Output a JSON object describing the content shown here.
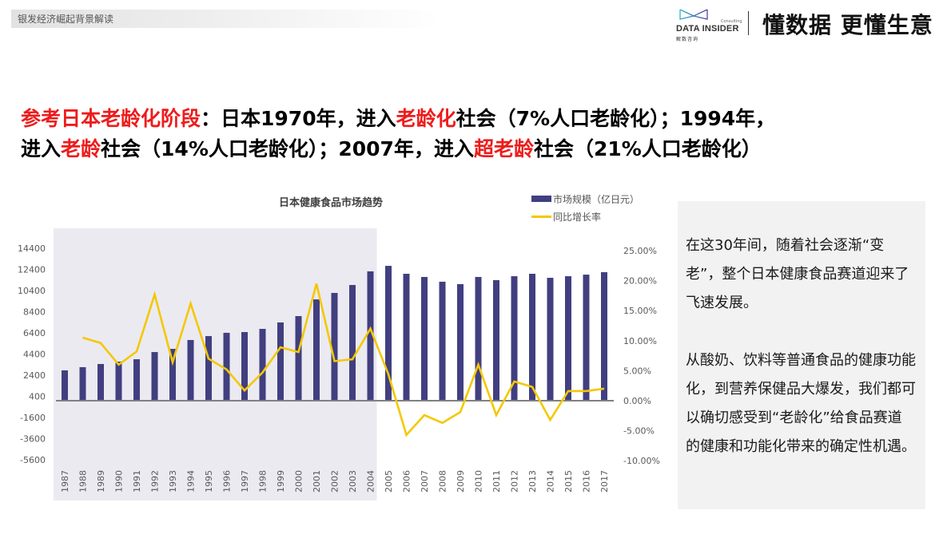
{
  "header": {
    "section_title": "银发经济崛起背景解读",
    "brand": {
      "consulting": "Consulting",
      "name": "DATA INSIDER",
      "name_cn": "解数咨询",
      "slogan": "懂数据 更懂生意"
    }
  },
  "headline": {
    "line1": [
      {
        "text": "参考日本老龄化阶段",
        "red": true
      },
      {
        "text": "：日本1970年，进入",
        "red": false
      },
      {
        "text": "老龄化",
        "red": true
      },
      {
        "text": "社会（7%人口老龄化）；1994年，",
        "red": false
      }
    ],
    "line2": [
      {
        "text": "进入",
        "red": false
      },
      {
        "text": "老龄",
        "red": true
      },
      {
        "text": "社会（14%人口老龄化）；2007年，进入",
        "red": false
      },
      {
        "text": "超老龄",
        "red": true
      },
      {
        "text": "社会（21%人口老龄化）",
        "red": false
      }
    ]
  },
  "side_panel": {
    "paragraph1": "在这30年间，随着社会逐渐“变老”，整个日本健康食品赛道迎来了飞速发展。",
    "paragraph2": "从酸奶、饮料等普通食品的健康功能化，到营养保健品大爆发，我们都可以确切感受到“老龄化”给食品赛道的健康和功能化带来的确定性机遇。"
  },
  "colors": {
    "bar": "#413f80",
    "line": "#f4c800",
    "shade": "#ebeaf1",
    "red_accent": "#ee1c1c",
    "panel_bg": "#f2f2f2"
  },
  "chart_data": {
    "type": "bar",
    "title": "日本健康食品市场趋势",
    "xlabel": "",
    "ylabel": "市场规模（亿日元）",
    "y2label": "同比增长率",
    "legend": [
      "市场规模（亿日元）",
      "同比增长率"
    ],
    "legend_position": "top-right",
    "grid": false,
    "shaded_range": [
      "1987",
      "2004"
    ],
    "ylim": [
      -5600,
      14400
    ],
    "yticks": [
      14400,
      12400,
      10400,
      8400,
      6400,
      4400,
      2400,
      400,
      -1600,
      -3600,
      -5600
    ],
    "y2lim": [
      -0.1,
      0.25
    ],
    "y2ticks": [
      "25.00%",
      "20.00%",
      "15.00%",
      "10.00%",
      "5.00%",
      "0.00%",
      "-5.00%",
      "-10.00%"
    ],
    "categories": [
      "1987",
      "1988",
      "1989",
      "1990",
      "1991",
      "1992",
      "1993",
      "1994",
      "1995",
      "1996",
      "1997",
      "1998",
      "1999",
      "2000",
      "2001",
      "2002",
      "2003",
      "2004",
      "2005",
      "2006",
      "2007",
      "2008",
      "2009",
      "2010",
      "2011",
      "2012",
      "2013",
      "2014",
      "2015",
      "2016",
      "2017"
    ],
    "series": [
      {
        "name": "市场规模（亿日元）",
        "type": "bar",
        "axis": "left",
        "values": [
          2870,
          3170,
          3470,
          3700,
          3920,
          4600,
          4900,
          5740,
          6110,
          6420,
          6490,
          6790,
          7400,
          8000,
          9580,
          10190,
          10940,
          12230,
          12750,
          12000,
          11700,
          11250,
          11020,
          11700,
          11400,
          11770,
          12000,
          11620,
          11770,
          11920,
          12150
        ]
      },
      {
        "name": "同比增长率",
        "type": "line",
        "axis": "right",
        "values": [
          null,
          10.5,
          9.6,
          6.0,
          8.2,
          17.7,
          6.4,
          16.2,
          7.0,
          5.2,
          1.7,
          4.7,
          8.9,
          8.1,
          19.5,
          6.6,
          6.9,
          12.0,
          4.4,
          -5.7,
          -2.4,
          -3.7,
          -1.9,
          6.0,
          -2.4,
          3.2,
          2.3,
          -3.2,
          1.6,
          1.6,
          2.0
        ]
      }
    ]
  }
}
